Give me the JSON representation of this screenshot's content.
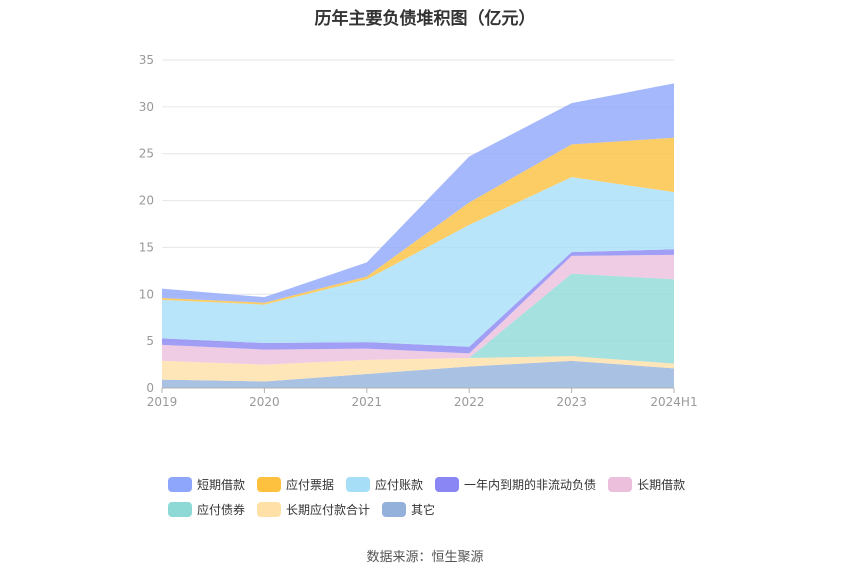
{
  "chart_data": {
    "type": "area",
    "stacked": true,
    "title": "历年主要负债堆积图（亿元）",
    "categories": [
      "2019",
      "2020",
      "2021",
      "2022",
      "2023",
      "2024H1"
    ],
    "ylim": [
      0,
      35
    ],
    "yticks": [
      0,
      5,
      10,
      15,
      20,
      25,
      30,
      35
    ],
    "grid": true,
    "legend_position": "bottom",
    "series": [
      {
        "name": "其它",
        "color": "#94b1dc",
        "values": [
          0.9,
          0.7,
          1.5,
          2.3,
          2.9,
          2.1
        ]
      },
      {
        "name": "长期应付款合计",
        "color": "#ffe0a6",
        "values": [
          2.0,
          1.8,
          1.5,
          0.9,
          0.5,
          0.5
        ]
      },
      {
        "name": "应付债券",
        "color": "#8ed9d6",
        "values": [
          0.0,
          0.0,
          0.0,
          0.0,
          8.8,
          9.0
        ]
      },
      {
        "name": "长期借款",
        "color": "#ecbfdd",
        "values": [
          1.7,
          1.6,
          1.2,
          0.5,
          1.9,
          2.6
        ]
      },
      {
        "name": "一年内到期的非流动负债",
        "color": "#8a86f3",
        "values": [
          0.7,
          0.7,
          0.7,
          0.7,
          0.4,
          0.6
        ]
      },
      {
        "name": "应付账款",
        "color": "#a6def8",
        "values": [
          4.1,
          4.1,
          6.7,
          13.0,
          8.0,
          6.1
        ]
      },
      {
        "name": "应付票据",
        "color": "#fdc13f",
        "values": [
          0.2,
          0.2,
          0.3,
          2.4,
          3.5,
          5.8
        ]
      },
      {
        "name": "短期借款",
        "color": "#8ea6fb",
        "values": [
          1.0,
          0.6,
          1.5,
          4.9,
          4.4,
          5.8
        ]
      }
    ],
    "legend_rows": [
      [
        "短期借款",
        "应付票据",
        "应付账款",
        "一年内到期的非流动负债",
        "长期借款"
      ],
      [
        "应付债券",
        "长期应付款合计",
        "其它"
      ]
    ]
  },
  "footer": {
    "source": "数据来源：恒生聚源"
  }
}
